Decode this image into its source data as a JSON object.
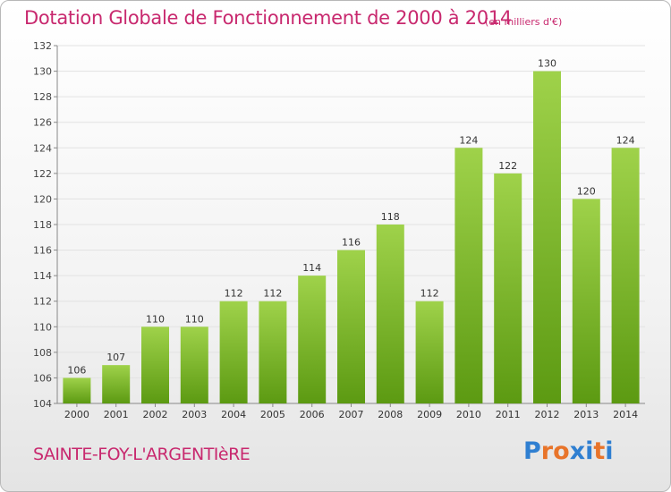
{
  "header": {
    "title": "Dotation Globale de Fonctionnement de 2000 à 2014",
    "unit": "(en milliers d'€)"
  },
  "footer": {
    "commune": "SAINTE-FOY-L'ARGENTIèRE",
    "logo": {
      "letters": [
        "P",
        "r",
        "o",
        "x",
        "i",
        "t",
        "i"
      ],
      "colors": [
        "#2f7fd1",
        "#e8742a",
        "#e8742a",
        "#2f7fd1",
        "#2f7fd1",
        "#e8742a",
        "#2f7fd1"
      ]
    }
  },
  "colors": {
    "accent": "#c8286e",
    "bar_top": "#9fd24a",
    "bar_bottom": "#5c9a12",
    "grid": "#e2e2e2",
    "axis": "#888888"
  },
  "chart_data": {
    "type": "bar",
    "categories": [
      "2000",
      "2001",
      "2002",
      "2003",
      "2004",
      "2005",
      "2006",
      "2007",
      "2008",
      "2009",
      "2010",
      "2011",
      "2012",
      "2013",
      "2014"
    ],
    "values": [
      106,
      107,
      110,
      110,
      112,
      112,
      114,
      116,
      118,
      112,
      124,
      122,
      130,
      120,
      124
    ],
    "data_labels": [
      "106",
      "107",
      "110",
      "110",
      "112",
      "112",
      "114",
      "116",
      "118",
      "112",
      "124",
      "122",
      "130",
      "120",
      "124"
    ],
    "title": "Dotation Globale de Fonctionnement de 2000 à 2014",
    "xlabel": "",
    "ylabel": "",
    "ylim": [
      104,
      132
    ],
    "yticks": [
      104,
      106,
      108,
      110,
      112,
      114,
      116,
      118,
      120,
      122,
      124,
      126,
      128,
      130,
      132
    ],
    "grid": true,
    "legend": "none"
  }
}
